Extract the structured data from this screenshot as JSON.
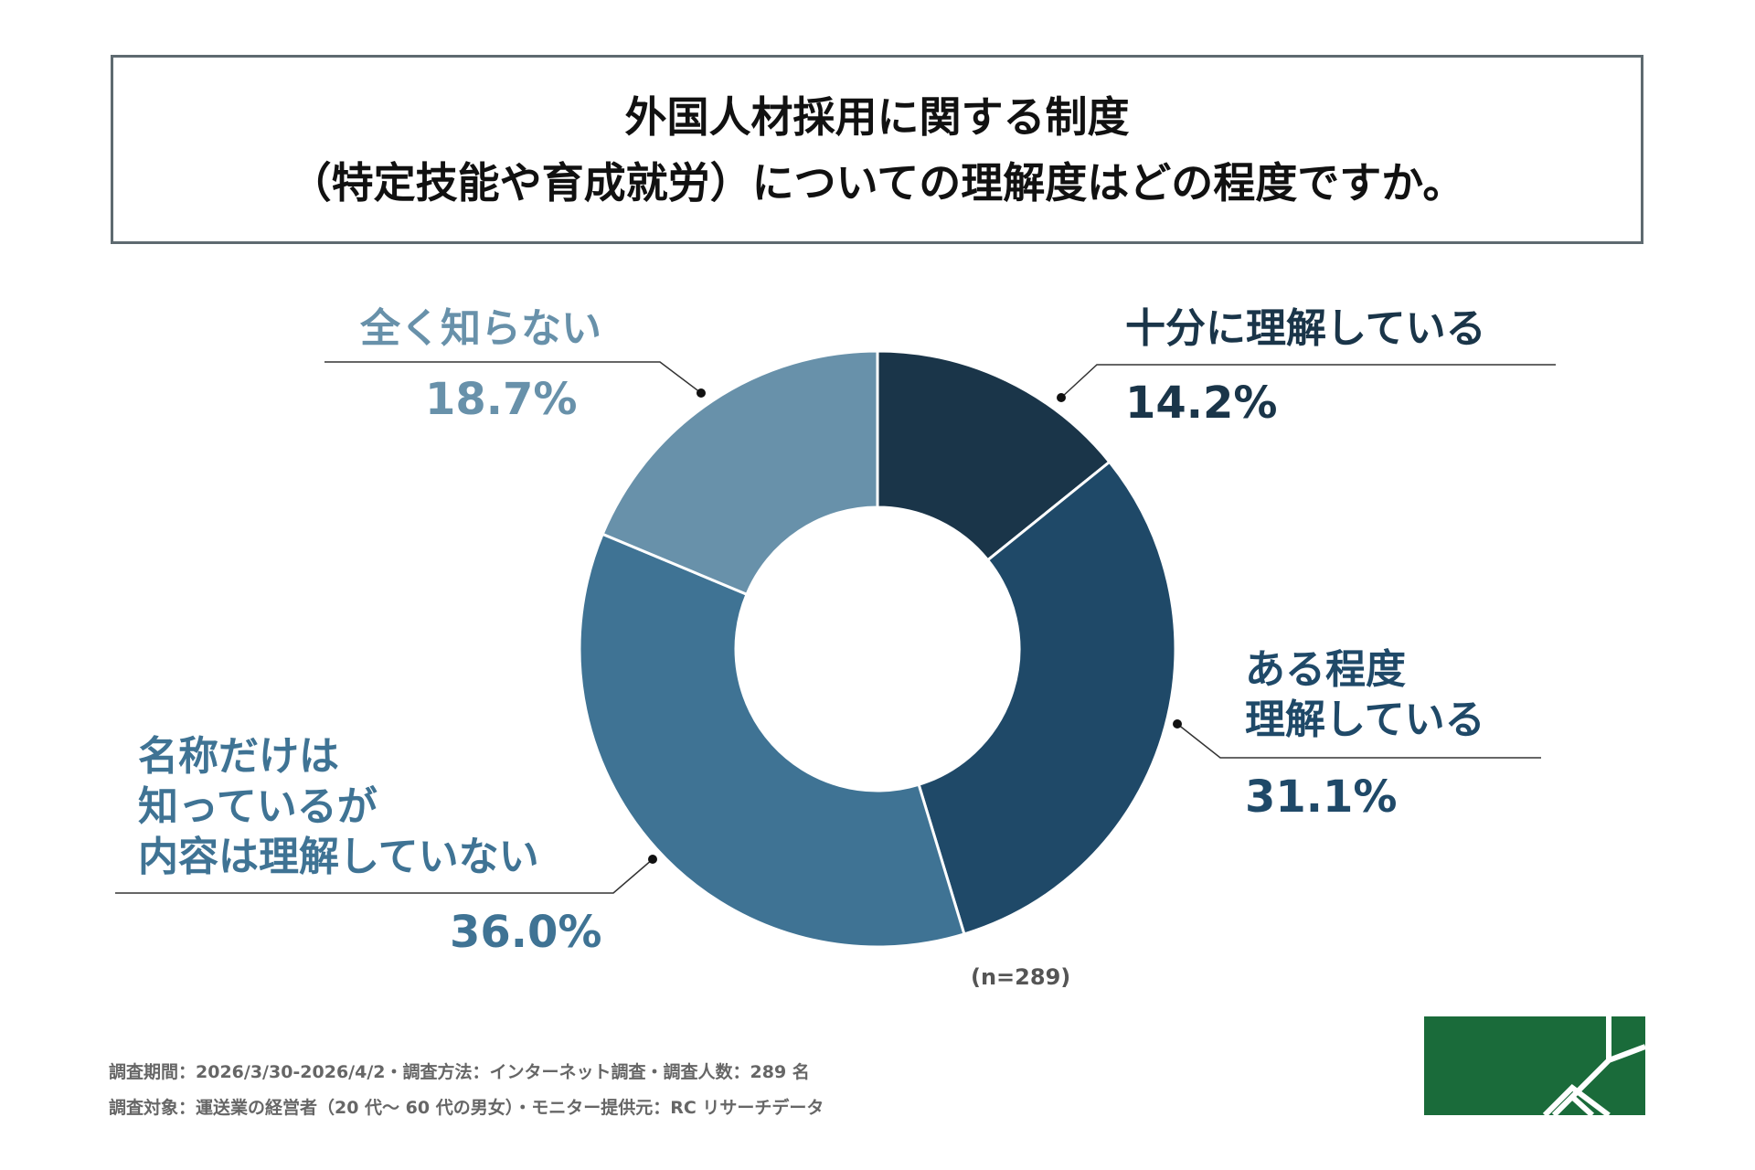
{
  "chart_data": {
    "type": "pie",
    "title": "外国人材採用に関する制度\n（特定技能や育成就労）についての理解度はどの程度ですか。",
    "categories": [
      "十分に理解している",
      "ある程度\n理解している",
      "名称だけは\n知っているが\n内容は理解していない",
      "全く知らない"
    ],
    "values": [
      14.2,
      31.1,
      36.0,
      18.7
    ],
    "value_labels": [
      "14.2%",
      "31.1%",
      "36.0%",
      "18.7%"
    ],
    "colors": [
      "#1a3549",
      "#1f4968",
      "#3f7394",
      "#6891aa"
    ],
    "donut": true,
    "note": "(n=289)",
    "footer": [
      "調査期間：2026/3/30-2026/4/2・調査方法：インターネット調査・調査人数：289 名",
      "調査対象：運送業の経営者（20 代～ 60 代の男女）・モニター提供元：RC リサーチデータ"
    ]
  }
}
